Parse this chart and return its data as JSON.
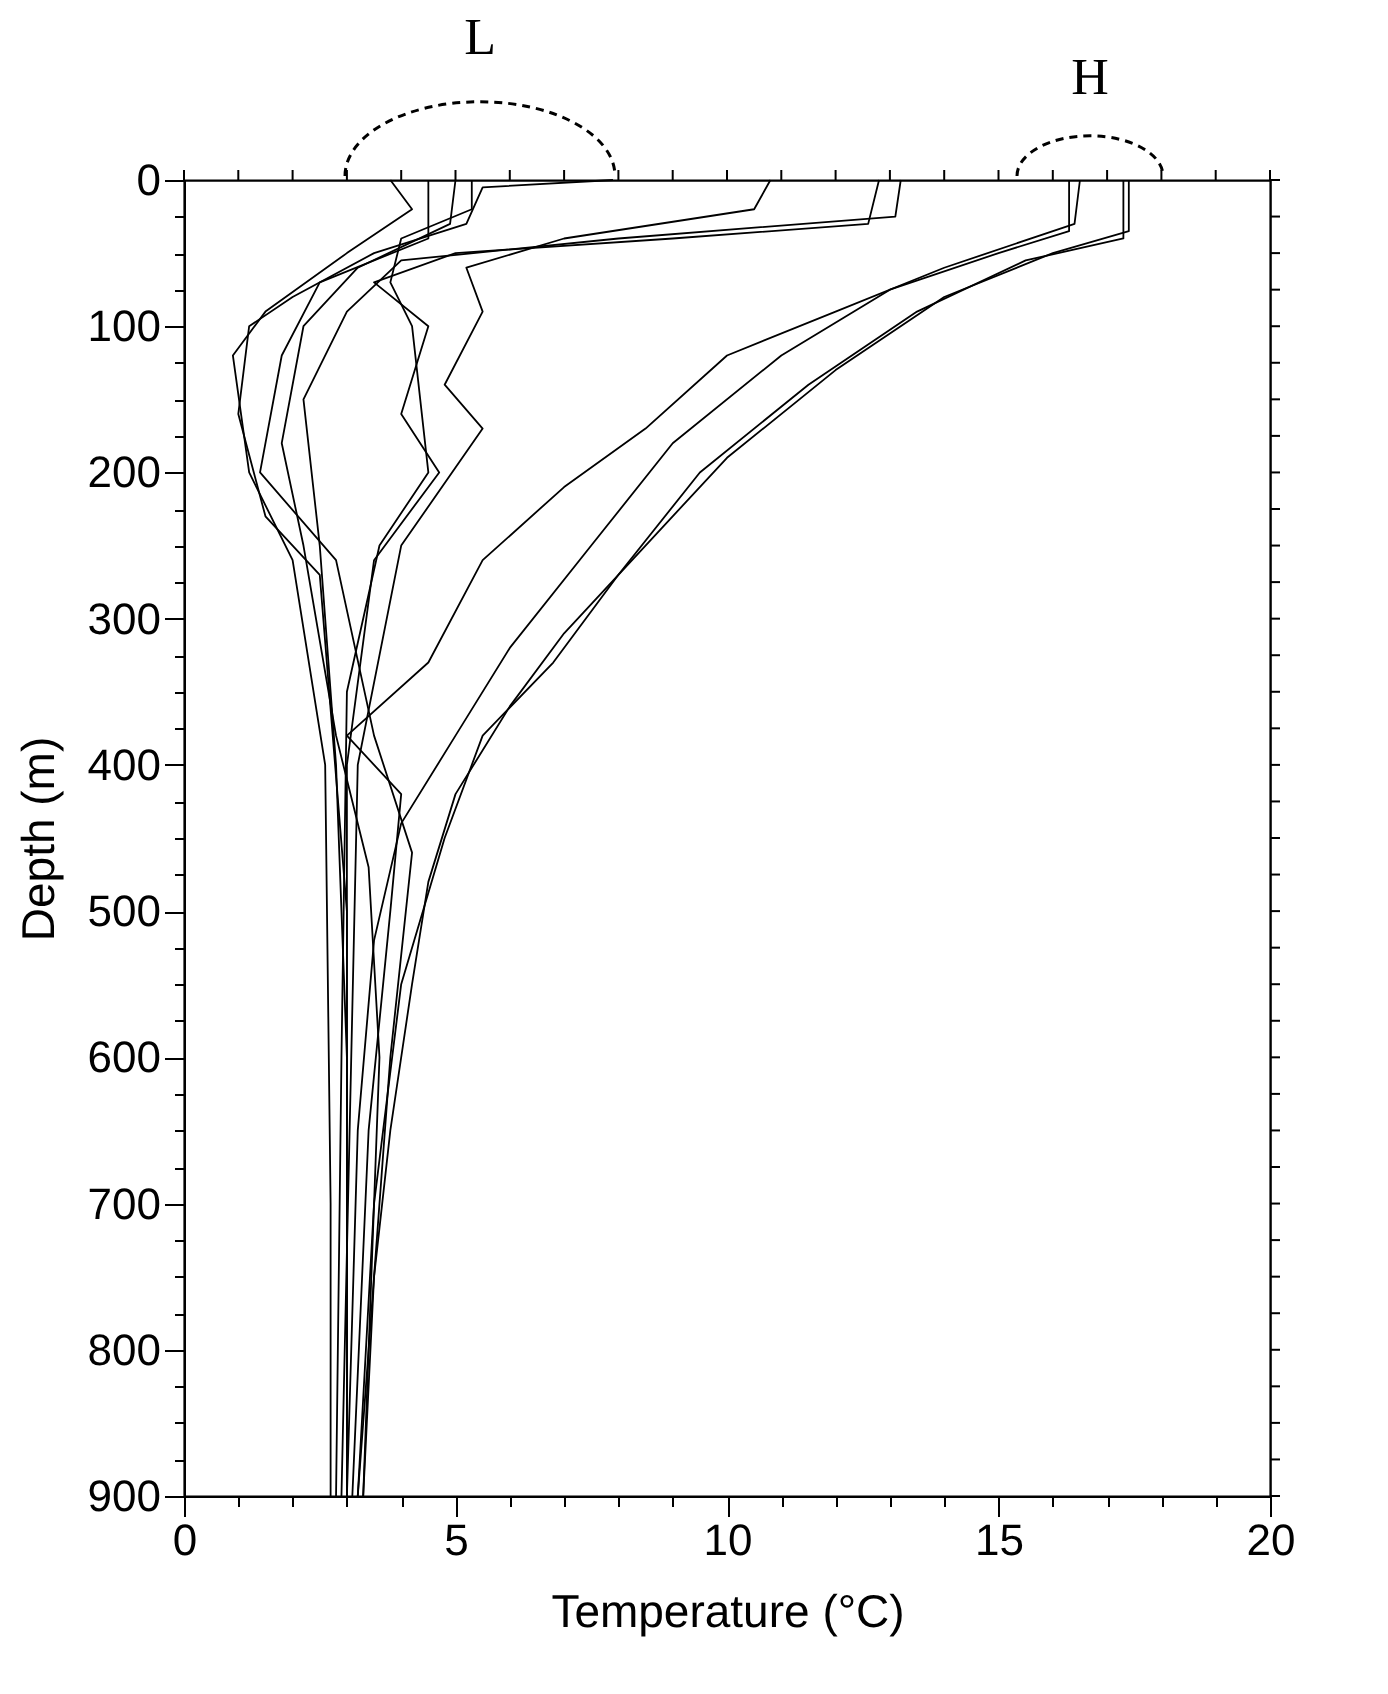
{
  "chart_data": {
    "type": "line",
    "xlabel": "Temperature (°C)",
    "ylabel": "Depth (m)",
    "xlim": [
      0,
      20
    ],
    "ylim": [
      900,
      0
    ],
    "xticks": [
      0,
      {
        "value": 1,
        "label": null
      },
      {
        "value": 2,
        "label": null
      },
      {
        "value": 3,
        "label": null
      },
      {
        "value": 4,
        "label": null
      },
      5,
      {
        "value": 6,
        "label": null
      },
      {
        "value": 7,
        "label": null
      },
      {
        "value": 8,
        "label": null
      },
      {
        "value": 9,
        "label": null
      },
      10,
      {
        "value": 11,
        "label": null
      },
      {
        "value": 12,
        "label": null
      },
      {
        "value": 13,
        "label": null
      },
      {
        "value": 14,
        "label": null
      },
      15,
      {
        "value": 16,
        "label": null
      },
      {
        "value": 17,
        "label": null
      },
      {
        "value": 18,
        "label": null
      },
      {
        "value": 19,
        "label": null
      },
      20
    ],
    "yticks": [
      0,
      {
        "value": 25,
        "label": null
      },
      {
        "value": 50,
        "label": null
      },
      {
        "value": 75,
        "label": null
      },
      100,
      {
        "value": 125,
        "label": null
      },
      {
        "value": 150,
        "label": null
      },
      {
        "value": 175,
        "label": null
      },
      200,
      {
        "value": 225,
        "label": null
      },
      {
        "value": 250,
        "label": null
      },
      {
        "value": 275,
        "label": null
      },
      300,
      {
        "value": 325,
        "label": null
      },
      {
        "value": 350,
        "label": null
      },
      {
        "value": 375,
        "label": null
      },
      400,
      {
        "value": 425,
        "label": null
      },
      {
        "value": 450,
        "label": null
      },
      {
        "value": 475,
        "label": null
      },
      500,
      {
        "value": 525,
        "label": null
      },
      {
        "value": 550,
        "label": null
      },
      {
        "value": 575,
        "label": null
      },
      600,
      {
        "value": 625,
        "label": null
      },
      {
        "value": 650,
        "label": null
      },
      {
        "value": 675,
        "label": null
      },
      700,
      {
        "value": 725,
        "label": null
      },
      {
        "value": 750,
        "label": null
      },
      {
        "value": 775,
        "label": null
      },
      800,
      {
        "value": 825,
        "label": null
      },
      {
        "value": 850,
        "label": null
      },
      {
        "value": 875,
        "label": null
      },
      900
    ],
    "grid": false,
    "legend": false,
    "marker": "none",
    "line_style": "solid",
    "annotations": [
      "L",
      "H"
    ],
    "series": [
      {
        "color": "#000000",
        "x": [
          17.4,
          17.4,
          16,
          14,
          12,
          10,
          8.5,
          7,
          6,
          5,
          4.5,
          4.2,
          3.8,
          3.5,
          3.3
        ],
        "values": [
          0,
          35,
          50,
          80,
          130,
          190,
          250,
          310,
          360,
          420,
          480,
          550,
          650,
          750,
          900
        ]
      },
      {
        "color": "#000000",
        "x": [
          16.3,
          16.3,
          15,
          13,
          11,
          9,
          7.5,
          6,
          5,
          4,
          3.5,
          3.2,
          3
        ],
        "values": [
          0,
          35,
          50,
          75,
          120,
          180,
          250,
          320,
          380,
          440,
          520,
          650,
          900
        ]
      },
      {
        "color": "#000000",
        "x": [
          17.3,
          17.3,
          15.5,
          13.5,
          11.5,
          9.5,
          8,
          6.8,
          5.5,
          4.8,
          4,
          3.5,
          3.2
        ],
        "values": [
          0,
          40,
          55,
          90,
          140,
          200,
          270,
          330,
          380,
          450,
          550,
          700,
          900
        ]
      },
      {
        "color": "#000000",
        "x": [
          16.5,
          16.4,
          14,
          12,
          10,
          8.5,
          7,
          5.5,
          4.5,
          3,
          4,
          3.8,
          3.4,
          3.1
        ],
        "values": [
          0,
          30,
          60,
          90,
          120,
          170,
          210,
          260,
          330,
          380,
          420,
          500,
          650,
          900
        ]
      },
      {
        "color": "#000000",
        "x": [
          13.2,
          13.1,
          8,
          4,
          3,
          2.2,
          2.5,
          2.8,
          3,
          3
        ],
        "values": [
          0,
          25,
          40,
          55,
          90,
          150,
          250,
          400,
          600,
          900
        ]
      },
      {
        "color": "#000000",
        "x": [
          12.8,
          12.6,
          9,
          5,
          3.5,
          4.5,
          4,
          4.7,
          3.5,
          3,
          3
        ],
        "values": [
          0,
          30,
          40,
          50,
          70,
          100,
          160,
          200,
          260,
          400,
          900
        ]
      },
      {
        "color": "#000000",
        "x": [
          10.8,
          10.5,
          7,
          5.2,
          5.5,
          4.8,
          5.5,
          4,
          3.2,
          2.9
        ],
        "values": [
          0,
          20,
          40,
          60,
          90,
          140,
          170,
          250,
          400,
          900
        ]
      },
      {
        "color": "#000000",
        "x": [
          5.3,
          5.3,
          4,
          3.8,
          4.2,
          4.5,
          3.6,
          3,
          2.9,
          2.8
        ],
        "values": [
          0,
          20,
          40,
          70,
          100,
          200,
          250,
          350,
          600,
          900
        ]
      },
      {
        "color": "#000000",
        "x": [
          7.9,
          5.5,
          5.2,
          3.5,
          2,
          1.2,
          1,
          1.5,
          2.5,
          3,
          3
        ],
        "values": [
          0,
          5,
          30,
          50,
          80,
          100,
          160,
          230,
          270,
          500,
          900
        ]
      },
      {
        "color": "#000000",
        "x": [
          3.8,
          4.2,
          3,
          1.5,
          0.9,
          1.2,
          2,
          2.6,
          2.7,
          2.7
        ],
        "values": [
          0,
          20,
          50,
          90,
          120,
          200,
          260,
          400,
          700,
          900
        ]
      },
      {
        "color": "#000000",
        "x": [
          5,
          4.9,
          3.2,
          2.2,
          1.8,
          2.2,
          2.8,
          3.4,
          3.6,
          3.3
        ],
        "values": [
          0,
          30,
          60,
          100,
          180,
          250,
          380,
          470,
          600,
          900
        ]
      },
      {
        "color": "#000000",
        "x": [
          4.5,
          4.5,
          2.5,
          1.8,
          1.4,
          2.8,
          3.5,
          4.2,
          3.8,
          3.2
        ],
        "values": [
          0,
          40,
          70,
          120,
          200,
          260,
          380,
          460,
          600,
          900
        ]
      }
    ]
  }
}
